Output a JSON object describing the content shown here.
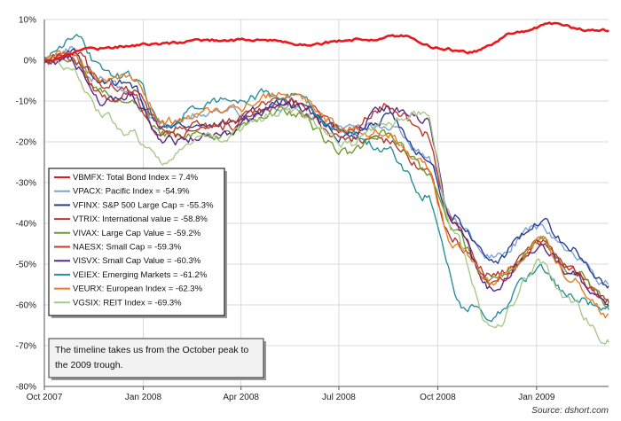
{
  "chart_data": {
    "type": "line",
    "y_axis": {
      "min": -80,
      "max": 10,
      "step": 10,
      "tick_labels": [
        "10%",
        "0%",
        "-10%",
        "-20%",
        "-30%",
        "-40%",
        "-50%",
        "-60%",
        "-70%",
        "-80%"
      ]
    },
    "x_axis": {
      "range": [
        "2007-10-01",
        "2009-03-09"
      ],
      "ticks": [
        {
          "date": "2007-10-01",
          "label": "Oct 2007"
        },
        {
          "date": "2008-01-01",
          "label": "Jan 2008"
        },
        {
          "date": "2008-04-01",
          "label": "Apr 2008"
        },
        {
          "date": "2008-07-01",
          "label": "Jul 2008"
        },
        {
          "date": "2008-10-01",
          "label": "Oct 2008"
        },
        {
          "date": "2009-01-01",
          "label": "Jan 2009"
        }
      ]
    },
    "grid": {
      "horizontal": true,
      "vertical": true
    },
    "legend_position": "bottom-left",
    "series": [
      {
        "name": "VBMFX: Total Bond Index = 7.4%",
        "color": "#e8191c",
        "points": [
          [
            "2007-10-01",
            0
          ],
          [
            "2007-11-15",
            3
          ],
          [
            "2008-01-15",
            4
          ],
          [
            "2008-03-01",
            5
          ],
          [
            "2008-04-15",
            5
          ],
          [
            "2008-06-01",
            4
          ],
          [
            "2008-07-15",
            5
          ],
          [
            "2008-09-01",
            6
          ],
          [
            "2008-10-01",
            3
          ],
          [
            "2008-11-01",
            2
          ],
          [
            "2008-12-15",
            7
          ],
          [
            "2009-01-15",
            9
          ],
          [
            "2009-02-15",
            7.5
          ],
          [
            "2009-03-09",
            7.4
          ]
        ]
      },
      {
        "name": "VPACX: Pacific Index = -54.9%",
        "color": "#7ea3d6",
        "points": [
          [
            "2007-10-01",
            0
          ],
          [
            "2007-10-25",
            3
          ],
          [
            "2007-11-15",
            -4
          ],
          [
            "2007-12-15",
            -7
          ],
          [
            "2008-01-20",
            -17
          ],
          [
            "2008-02-20",
            -13
          ],
          [
            "2008-04-01",
            -13
          ],
          [
            "2008-05-15",
            -11
          ],
          [
            "2008-07-01",
            -17
          ],
          [
            "2008-08-15",
            -16
          ],
          [
            "2008-09-20",
            -23
          ],
          [
            "2008-10-15",
            -39
          ],
          [
            "2008-11-20",
            -48
          ],
          [
            "2009-01-05",
            -41
          ],
          [
            "2009-01-31",
            -47
          ],
          [
            "2009-03-09",
            -54.9
          ]
        ]
      },
      {
        "name": "VFINX: S&P 500 Large Cap = -55.3%",
        "color": "#2a3f8f",
        "points": [
          [
            "2007-10-01",
            0
          ],
          [
            "2007-10-25",
            2
          ],
          [
            "2007-11-25",
            -6
          ],
          [
            "2007-12-15",
            -5
          ],
          [
            "2008-01-20",
            -16
          ],
          [
            "2008-03-10",
            -16
          ],
          [
            "2008-05-15",
            -10
          ],
          [
            "2008-07-10",
            -19
          ],
          [
            "2008-08-15",
            -14
          ],
          [
            "2008-09-20",
            -23
          ],
          [
            "2008-10-15",
            -38
          ],
          [
            "2008-11-20",
            -50
          ],
          [
            "2009-01-05",
            -39
          ],
          [
            "2009-01-31",
            -46
          ],
          [
            "2009-03-09",
            -55.3
          ]
        ]
      },
      {
        "name": "VTRIX: International value = -58.8%",
        "color": "#b03a36",
        "points": [
          [
            "2007-10-01",
            0
          ],
          [
            "2007-10-30",
            2
          ],
          [
            "2007-11-25",
            -6
          ],
          [
            "2007-12-20",
            -7
          ],
          [
            "2008-01-22",
            -17
          ],
          [
            "2008-03-15",
            -15
          ],
          [
            "2008-05-15",
            -11
          ],
          [
            "2008-07-10",
            -19
          ],
          [
            "2008-08-20",
            -20
          ],
          [
            "2008-09-20",
            -27
          ],
          [
            "2008-10-15",
            -44
          ],
          [
            "2008-11-20",
            -53
          ],
          [
            "2009-01-05",
            -45
          ],
          [
            "2009-01-31",
            -51
          ],
          [
            "2009-03-09",
            -58.8
          ]
        ]
      },
      {
        "name": "VIVAX: Large Cap Value = -59.2%",
        "color": "#6e9b2e",
        "points": [
          [
            "2007-10-01",
            0
          ],
          [
            "2007-10-25",
            1
          ],
          [
            "2007-11-25",
            -8
          ],
          [
            "2007-12-20",
            -9
          ],
          [
            "2008-01-20",
            -18
          ],
          [
            "2008-03-10",
            -18
          ],
          [
            "2008-05-15",
            -13
          ],
          [
            "2008-07-10",
            -23
          ],
          [
            "2008-08-15",
            -18
          ],
          [
            "2008-09-20",
            -27
          ],
          [
            "2008-10-15",
            -42
          ],
          [
            "2008-11-20",
            -55
          ],
          [
            "2009-01-05",
            -44
          ],
          [
            "2009-01-31",
            -51
          ],
          [
            "2009-03-09",
            -59.2
          ]
        ]
      },
      {
        "name": "NAESX: Small Cap = -59.3%",
        "color": "#c0392b",
        "points": [
          [
            "2007-10-01",
            0
          ],
          [
            "2007-10-25",
            1
          ],
          [
            "2007-11-25",
            -9
          ],
          [
            "2007-12-20",
            -8
          ],
          [
            "2008-01-20",
            -19
          ],
          [
            "2008-03-10",
            -17
          ],
          [
            "2008-05-15",
            -9
          ],
          [
            "2008-07-10",
            -17
          ],
          [
            "2008-08-15",
            -11
          ],
          [
            "2008-09-20",
            -18
          ],
          [
            "2008-10-15",
            -40
          ],
          [
            "2008-11-20",
            -55
          ],
          [
            "2009-01-05",
            -44
          ],
          [
            "2009-01-31",
            -51
          ],
          [
            "2009-03-09",
            -59.3
          ]
        ]
      },
      {
        "name": "VISVX: Small Cap Value = -60.3%",
        "color": "#5b2a86",
        "points": [
          [
            "2007-10-01",
            0
          ],
          [
            "2007-10-25",
            0
          ],
          [
            "2007-11-25",
            -10
          ],
          [
            "2007-12-20",
            -9
          ],
          [
            "2008-01-20",
            -20
          ],
          [
            "2008-03-10",
            -18
          ],
          [
            "2008-05-15",
            -11
          ],
          [
            "2008-07-10",
            -18
          ],
          [
            "2008-08-15",
            -12
          ],
          [
            "2008-09-20",
            -14
          ],
          [
            "2008-10-15",
            -41
          ],
          [
            "2008-11-20",
            -56
          ],
          [
            "2009-01-05",
            -45
          ],
          [
            "2009-01-31",
            -52
          ],
          [
            "2009-03-09",
            -60.3
          ]
        ]
      },
      {
        "name": "VEIEX: Emerging Markets = -61.2%",
        "color": "#2a8f9e",
        "points": [
          [
            "2007-10-01",
            0
          ],
          [
            "2007-10-28",
            6
          ],
          [
            "2007-11-25",
            -3
          ],
          [
            "2007-12-20",
            -4
          ],
          [
            "2008-01-22",
            -16
          ],
          [
            "2008-03-01",
            -10
          ],
          [
            "2008-05-15",
            -8
          ],
          [
            "2008-07-10",
            -18
          ],
          [
            "2008-08-15",
            -22
          ],
          [
            "2008-09-20",
            -33
          ],
          [
            "2008-10-25",
            -60
          ],
          [
            "2008-11-20",
            -62
          ],
          [
            "2009-01-05",
            -51
          ],
          [
            "2009-01-31",
            -58
          ],
          [
            "2009-03-09",
            -61.2
          ]
        ]
      },
      {
        "name": "VEURX: European Index = -62.3%",
        "color": "#e67e22",
        "points": [
          [
            "2007-10-01",
            0
          ],
          [
            "2007-10-25",
            2
          ],
          [
            "2007-11-25",
            -5
          ],
          [
            "2007-12-20",
            -5
          ],
          [
            "2008-01-20",
            -15
          ],
          [
            "2008-03-10",
            -13
          ],
          [
            "2008-05-15",
            -8
          ],
          [
            "2008-07-10",
            -17
          ],
          [
            "2008-08-15",
            -18
          ],
          [
            "2008-09-20",
            -26
          ],
          [
            "2008-10-15",
            -45
          ],
          [
            "2008-11-20",
            -55
          ],
          [
            "2009-01-05",
            -44
          ],
          [
            "2009-01-31",
            -53
          ],
          [
            "2009-03-09",
            -62.3
          ]
        ]
      },
      {
        "name": "VGSIX: REIT Index = -69.3%",
        "color": "#a8c98a",
        "points": [
          [
            "2007-10-01",
            0
          ],
          [
            "2007-10-25",
            -2
          ],
          [
            "2007-11-25",
            -14
          ],
          [
            "2007-12-20",
            -18
          ],
          [
            "2008-01-20",
            -25
          ],
          [
            "2008-02-20",
            -20
          ],
          [
            "2008-03-10",
            -19
          ],
          [
            "2008-05-15",
            -12
          ],
          [
            "2008-07-10",
            -21
          ],
          [
            "2008-08-15",
            -15
          ],
          [
            "2008-09-20",
            -13
          ],
          [
            "2008-10-15",
            -43
          ],
          [
            "2008-11-20",
            -66
          ],
          [
            "2009-01-05",
            -50
          ],
          [
            "2009-01-31",
            -59
          ],
          [
            "2009-03-09",
            -69.3
          ]
        ]
      }
    ],
    "annotation": "The timeline takes us from the October peak to the 2009 trough.",
    "source": "Source: dshort.com"
  }
}
